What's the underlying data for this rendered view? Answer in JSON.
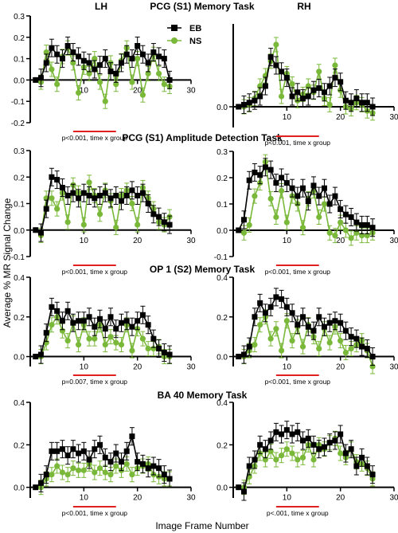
{
  "figure": {
    "col_labels": [
      "LH",
      "RH"
    ],
    "row_titles": [
      "PCG (S1) Memory Task",
      "PCG (S1) Amplitude Detection Task",
      "OP 1 (S2) Memory Task",
      "BA 40 Memory Task"
    ],
    "ylabel": "Average % MR Signal Change",
    "xlabel": "Image Frame Number",
    "legend": [
      {
        "name": "EB",
        "color": "#000000",
        "marker": "square"
      },
      {
        "name": "NS",
        "color": "#7ab83a",
        "marker": "circle"
      }
    ]
  },
  "chart_data": [
    {
      "type": "line",
      "panel": "PCG (S1) Memory Task LH",
      "x": [
        1,
        2,
        3,
        4,
        5,
        6,
        7,
        8,
        9,
        10,
        11,
        12,
        13,
        14,
        15,
        16,
        17,
        18,
        19,
        20,
        21,
        22,
        23,
        24,
        25,
        26
      ],
      "series": [
        {
          "name": "EB",
          "values": [
            0.0,
            0.01,
            0.08,
            0.15,
            0.12,
            0.1,
            0.16,
            0.13,
            0.11,
            0.09,
            0.08,
            0.05,
            0.07,
            0.1,
            0.04,
            0.03,
            0.08,
            0.12,
            0.1,
            0.16,
            0.12,
            0.08,
            0.13,
            0.11,
            0.1,
            0.0
          ]
        },
        {
          "name": "NS",
          "values": [
            0.0,
            -0.01,
            0.13,
            0.05,
            -0.02,
            0.11,
            0.15,
            0.08,
            -0.06,
            0.06,
            0.03,
            0.1,
            -0.01,
            -0.1,
            0.08,
            -0.02,
            0.09,
            0.15,
            -0.01,
            0.1,
            -0.07,
            0.03,
            0.12,
            0.03,
            -0.02,
            -0.03
          ]
        }
      ],
      "xlim": [
        0,
        30
      ],
      "ylim": [
        -0.2,
        0.3
      ],
      "xticks": [
        10,
        20,
        30
      ],
      "yticks": [
        -0.2,
        -0.1,
        0.0,
        0.1,
        0.2,
        0.3
      ],
      "annotation": "p<0.001, time x group"
    },
    {
      "type": "line",
      "panel": "PCG (S1) Memory Task RH",
      "x": [
        1,
        2,
        3,
        4,
        5,
        6,
        7,
        8,
        9,
        10,
        11,
        12,
        13,
        14,
        15,
        16,
        17,
        18,
        19,
        20,
        21,
        22,
        23,
        24,
        25,
        26
      ],
      "series": [
        {
          "name": "EB",
          "values": [
            0.0,
            0.01,
            0.02,
            0.03,
            0.05,
            0.1,
            0.24,
            0.2,
            0.17,
            0.14,
            0.05,
            0.07,
            0.04,
            0.05,
            0.08,
            0.09,
            0.07,
            0.1,
            0.14,
            0.12,
            0.03,
            0.02,
            0.04,
            0.02,
            0.02,
            0.0
          ]
        },
        {
          "name": "NS",
          "values": [
            0.0,
            0.0,
            0.01,
            0.04,
            0.1,
            0.15,
            0.22,
            0.3,
            0.05,
            0.16,
            0.11,
            0.03,
            0.06,
            0.1,
            0.07,
            0.17,
            0.04,
            0.01,
            0.2,
            0.08,
            0.0,
            -0.01,
            0.02,
            0.01,
            -0.02,
            -0.03
          ]
        }
      ],
      "xlim": [
        0,
        30
      ],
      "ylim": [
        -0.1,
        0.4
      ],
      "xticks": [
        10,
        20,
        30
      ],
      "yticks": [
        0.0
      ],
      "annotation": "p<0.001, time x group"
    },
    {
      "type": "line",
      "panel": "PCG (S1) Amplitude Detection Task LH",
      "x": [
        1,
        2,
        3,
        4,
        5,
        6,
        7,
        8,
        9,
        10,
        11,
        12,
        13,
        14,
        15,
        16,
        17,
        18,
        19,
        20,
        21,
        22,
        23,
        24,
        25,
        26
      ],
      "series": [
        {
          "name": "EB",
          "values": [
            0.0,
            -0.01,
            0.08,
            0.2,
            0.19,
            0.16,
            0.13,
            0.14,
            0.12,
            0.14,
            0.13,
            0.12,
            0.13,
            0.14,
            0.12,
            0.13,
            0.11,
            0.13,
            0.15,
            0.13,
            0.14,
            0.1,
            0.06,
            0.05,
            0.03,
            0.02
          ]
        },
        {
          "name": "NS",
          "values": [
            0.0,
            -0.02,
            0.12,
            0.12,
            0.08,
            0.14,
            0.03,
            0.17,
            0.14,
            0.02,
            0.18,
            0.13,
            0.06,
            0.15,
            0.11,
            0.01,
            0.13,
            0.15,
            0.1,
            0.02,
            0.16,
            0.12,
            0.08,
            0.03,
            0.02,
            0.05
          ]
        }
      ],
      "xlim": [
        0,
        30
      ],
      "ylim": [
        -0.1,
        0.3
      ],
      "xticks": [
        10,
        20,
        30
      ],
      "yticks": [
        -0.1,
        0.0,
        0.1,
        0.2,
        0.3
      ],
      "annotation": "p<0.001, time x group"
    },
    {
      "type": "line",
      "panel": "PCG (S1) Amplitude Detection Task RH",
      "x": [
        1,
        2,
        3,
        4,
        5,
        6,
        7,
        8,
        9,
        10,
        11,
        12,
        13,
        14,
        15,
        16,
        17,
        18,
        19,
        20,
        21,
        22,
        23,
        24,
        25,
        26
      ],
      "series": [
        {
          "name": "EB",
          "values": [
            0.0,
            0.04,
            0.19,
            0.22,
            0.21,
            0.24,
            0.23,
            0.18,
            0.2,
            0.18,
            0.16,
            0.13,
            0.16,
            0.11,
            0.17,
            0.13,
            0.16,
            0.1,
            0.13,
            0.08,
            0.06,
            0.05,
            0.03,
            0.02,
            0.02,
            0.01
          ]
        },
        {
          "name": "NS",
          "values": [
            0.0,
            -0.01,
            0.02,
            0.13,
            0.18,
            0.26,
            0.12,
            0.05,
            0.15,
            0.03,
            0.13,
            0.1,
            0.01,
            0.12,
            0.15,
            0.05,
            0.1,
            -0.01,
            -0.02,
            0.03,
            0.0,
            -0.03,
            -0.01,
            -0.02,
            -0.02,
            -0.01
          ]
        }
      ],
      "xlim": [
        0,
        30
      ],
      "ylim": [
        -0.1,
        0.3
      ],
      "xticks": [
        10,
        20,
        30
      ],
      "yticks": [
        -0.1,
        0.0,
        0.1,
        0.2,
        0.3
      ],
      "annotation": "p<0.001, time x group"
    },
    {
      "type": "line",
      "panel": "OP 1 (S2) Memory Task LH",
      "x": [
        1,
        2,
        3,
        4,
        5,
        6,
        7,
        8,
        9,
        10,
        11,
        12,
        13,
        14,
        15,
        16,
        17,
        18,
        19,
        20,
        21,
        22,
        23,
        24,
        25,
        26
      ],
      "series": [
        {
          "name": "EB",
          "values": [
            0.0,
            0.01,
            0.12,
            0.25,
            0.23,
            0.18,
            0.23,
            0.17,
            0.18,
            0.18,
            0.2,
            0.15,
            0.19,
            0.14,
            0.2,
            0.14,
            0.17,
            0.18,
            0.15,
            0.18,
            0.21,
            0.16,
            0.09,
            0.04,
            0.02,
            0.01
          ]
        },
        {
          "name": "NS",
          "values": [
            0.0,
            0.0,
            0.07,
            0.16,
            0.2,
            0.13,
            0.08,
            0.17,
            0.06,
            0.16,
            0.09,
            0.09,
            0.16,
            0.06,
            0.1,
            0.07,
            0.06,
            0.16,
            0.03,
            0.14,
            0.09,
            0.04,
            0.04,
            0.05,
            0.0,
            0.0
          ]
        }
      ],
      "xlim": [
        0,
        30
      ],
      "ylim": [
        -0.05,
        0.4
      ],
      "xticks": [
        10,
        20,
        30
      ],
      "yticks": [
        0.0,
        0.2,
        0.4
      ],
      "annotation": "p=0.007, time x group"
    },
    {
      "type": "line",
      "panel": "OP 1 (S2) Memory Task RH",
      "x": [
        1,
        2,
        3,
        4,
        5,
        6,
        7,
        8,
        9,
        10,
        11,
        12,
        13,
        14,
        15,
        16,
        17,
        18,
        19,
        20,
        21,
        22,
        23,
        24,
        25,
        26
      ],
      "series": [
        {
          "name": "EB",
          "values": [
            0.0,
            0.01,
            0.05,
            0.2,
            0.27,
            0.22,
            0.25,
            0.3,
            0.29,
            0.25,
            0.22,
            0.16,
            0.2,
            0.15,
            0.13,
            0.2,
            0.15,
            0.17,
            0.18,
            0.17,
            0.13,
            0.1,
            0.09,
            0.05,
            0.04,
            0.0
          ]
        },
        {
          "name": "NS",
          "values": [
            0.0,
            0.0,
            0.03,
            0.06,
            0.16,
            0.2,
            0.09,
            0.14,
            0.03,
            0.18,
            0.08,
            0.15,
            0.05,
            0.16,
            0.1,
            0.04,
            0.14,
            0.07,
            0.15,
            0.08,
            0.02,
            0.04,
            0.06,
            0.08,
            0.03,
            -0.05
          ]
        }
      ],
      "xlim": [
        0,
        30
      ],
      "ylim": [
        -0.05,
        0.4
      ],
      "xticks": [
        10,
        20,
        30
      ],
      "yticks": [
        0.0,
        0.2,
        0.4
      ],
      "annotation": "p<0.001, time x group"
    },
    {
      "type": "line",
      "panel": "BA 40 Memory Task LH",
      "x": [
        1,
        2,
        3,
        4,
        5,
        6,
        7,
        8,
        9,
        10,
        11,
        12,
        13,
        14,
        15,
        16,
        17,
        18,
        19,
        20,
        21,
        22,
        23,
        24,
        25,
        26
      ],
      "series": [
        {
          "name": "EB",
          "values": [
            0.0,
            0.02,
            0.06,
            0.17,
            0.17,
            0.18,
            0.15,
            0.18,
            0.16,
            0.17,
            0.13,
            0.18,
            0.2,
            0.14,
            0.12,
            0.16,
            0.12,
            0.17,
            0.24,
            0.12,
            0.11,
            0.09,
            0.1,
            0.09,
            0.06,
            0.04
          ]
        },
        {
          "name": "NS",
          "values": [
            0.0,
            0.0,
            0.04,
            0.06,
            0.1,
            0.07,
            0.06,
            0.09,
            0.08,
            0.08,
            0.11,
            0.07,
            0.09,
            0.07,
            0.06,
            0.1,
            0.08,
            0.11,
            0.06,
            0.09,
            0.1,
            0.11,
            0.06,
            0.05,
            0.04,
            0.04
          ]
        }
      ],
      "xlim": [
        0,
        30
      ],
      "ylim": [
        -0.05,
        0.4
      ],
      "xticks": [
        10,
        20,
        30
      ],
      "yticks": [
        0.0,
        0.2,
        0.4
      ],
      "annotation": "p<0.001, time x group"
    },
    {
      "type": "line",
      "panel": "BA 40 Memory Task RH",
      "x": [
        1,
        2,
        3,
        4,
        5,
        6,
        7,
        8,
        9,
        10,
        11,
        12,
        13,
        14,
        15,
        16,
        17,
        18,
        19,
        20,
        21,
        22,
        23,
        24,
        25,
        26
      ],
      "series": [
        {
          "name": "EB",
          "values": [
            0.0,
            -0.02,
            0.1,
            0.13,
            0.2,
            0.18,
            0.22,
            0.26,
            0.25,
            0.27,
            0.25,
            0.26,
            0.22,
            0.23,
            0.2,
            0.18,
            0.19,
            0.21,
            0.22,
            0.25,
            0.16,
            0.18,
            0.1,
            0.14,
            0.1,
            0.06
          ]
        },
        {
          "name": "NS",
          "values": [
            0.0,
            0.0,
            0.05,
            0.1,
            0.16,
            0.13,
            0.17,
            0.13,
            0.15,
            0.18,
            0.16,
            0.13,
            0.14,
            0.2,
            0.13,
            0.2,
            0.18,
            0.21,
            0.23,
            0.16,
            0.14,
            0.18,
            0.12,
            0.11,
            0.09,
            0.04
          ]
        }
      ],
      "xlim": [
        0,
        30
      ],
      "ylim": [
        -0.05,
        0.4
      ],
      "xticks": [
        10,
        20,
        30
      ],
      "yticks": [
        0.0,
        0.2,
        0.4
      ],
      "annotation": "p<.001, time x group"
    }
  ]
}
